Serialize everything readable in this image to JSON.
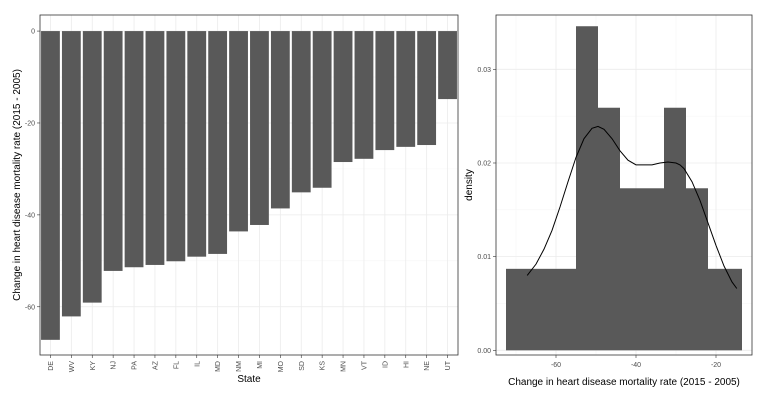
{
  "chart_data": [
    {
      "type": "bar",
      "xlabel": "State",
      "ylabel": "Change in heart disease mortality rate (2015 - 2005)",
      "categories": [
        "DE",
        "WV",
        "KY",
        "NJ",
        "PA",
        "AZ",
        "FL",
        "IL",
        "MD",
        "NM",
        "MI",
        "MO",
        "SD",
        "KS",
        "MN",
        "VT",
        "ID",
        "HI",
        "NE",
        "UT"
      ],
      "values": [
        -67.2,
        -62.1,
        -59.1,
        -52.2,
        -51.4,
        -50.9,
        -50.1,
        -49.1,
        -48.5,
        -43.6,
        -42.2,
        -38.6,
        -35.1,
        -34.1,
        -28.5,
        -27.8,
        -25.9,
        -25.2,
        -24.8,
        -14.8
      ],
      "ylim": [
        -70.5,
        3.5
      ],
      "yticks": [
        0,
        -20,
        -40,
        -60
      ],
      "bar_color": "#595959",
      "grid": true
    },
    {
      "type": "histogram",
      "xlabel": "Change in heart disease mortality rate (2015 - 2005)",
      "ylabel": "density",
      "bins": [
        {
          "x0": -72.5,
          "x1": -55.0,
          "density": 0.0087
        },
        {
          "x0": -55.0,
          "x1": -49.5,
          "density": 0.0346
        },
        {
          "x0": -49.5,
          "x1": -44.0,
          "density": 0.0259
        },
        {
          "x0": -44.0,
          "x1": -33.0,
          "density": 0.0173
        },
        {
          "x0": -33.0,
          "x1": -27.5,
          "density": 0.0259
        },
        {
          "x0": -27.5,
          "x1": -22.0,
          "density": 0.0173
        },
        {
          "x0": -22.0,
          "x1": -13.5,
          "density": 0.0087
        }
      ],
      "density_curve": {
        "x": [
          -67.2,
          -65,
          -63,
          -61,
          -59,
          -57,
          -55,
          -53,
          -51,
          -49.5,
          -48,
          -46,
          -44,
          -42,
          -40,
          -38,
          -36,
          -34,
          -32,
          -30,
          -29,
          -28,
          -26,
          -24,
          -22,
          -20,
          -18,
          -16,
          -14.8
        ],
        "y": [
          0.008,
          0.0092,
          0.0108,
          0.0128,
          0.0153,
          0.018,
          0.0206,
          0.0226,
          0.0237,
          0.0239,
          0.0236,
          0.0226,
          0.0213,
          0.0203,
          0.0198,
          0.0198,
          0.0198,
          0.02,
          0.0201,
          0.02,
          0.0198,
          0.0194,
          0.018,
          0.016,
          0.0136,
          0.0112,
          0.009,
          0.0073,
          0.0066
        ]
      },
      "xlim": [
        -75,
        -11
      ],
      "ylim": [
        -0.0005,
        0.0358
      ],
      "xticks": [
        -60,
        -40,
        -20
      ],
      "xtick_labels": [
        "-60",
        "-40",
        "-20"
      ],
      "yticks": [
        0.0,
        0.01,
        0.02,
        0.03
      ],
      "ytick_labels": [
        "0.00",
        "0.01",
        "0.02",
        "0.03"
      ],
      "bar_color": "#595959",
      "grid": true
    }
  ]
}
